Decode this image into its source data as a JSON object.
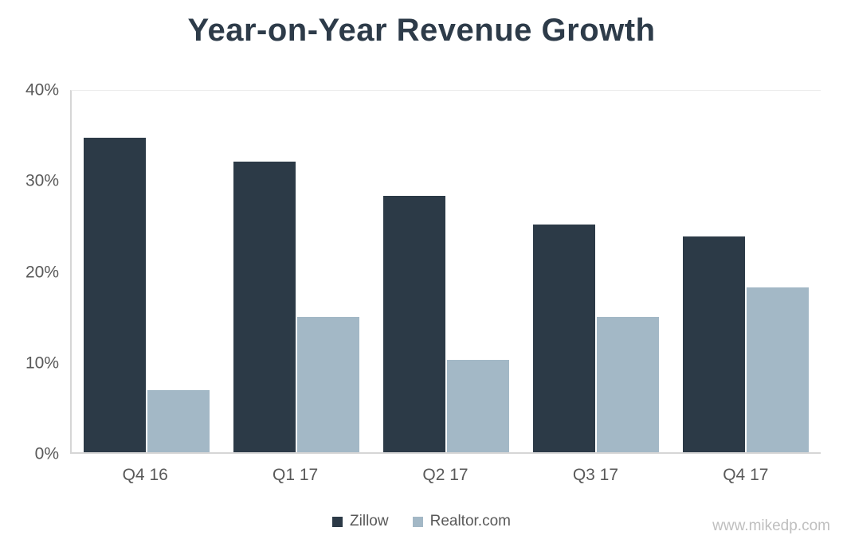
{
  "title": "Year-on-Year Revenue Growth",
  "watermark": "www.mikedp.com",
  "chart_data": {
    "type": "bar",
    "title": "Year-on-Year Revenue Growth",
    "categories": [
      "Q4 16",
      "Q1 17",
      "Q2 17",
      "Q3 17",
      "Q4 17"
    ],
    "series": [
      {
        "name": "Zillow",
        "color": "#2c3a47",
        "values": [
          34.8,
          32.2,
          28.4,
          25.2,
          23.9
        ]
      },
      {
        "name": "Realtor.com",
        "color": "#a3b8c6",
        "values": [
          6.9,
          15.0,
          10.2,
          15.0,
          18.2
        ]
      }
    ],
    "xlabel": "",
    "ylabel": "",
    "ylim": [
      0,
      40
    ],
    "yticks": [
      {
        "value": 0,
        "label": "0%"
      },
      {
        "value": 10,
        "label": "10%"
      },
      {
        "value": 20,
        "label": "20%"
      },
      {
        "value": 30,
        "label": "30%"
      },
      {
        "value": 40,
        "label": "40%"
      }
    ],
    "grid": false,
    "legend_position": "bottom"
  }
}
